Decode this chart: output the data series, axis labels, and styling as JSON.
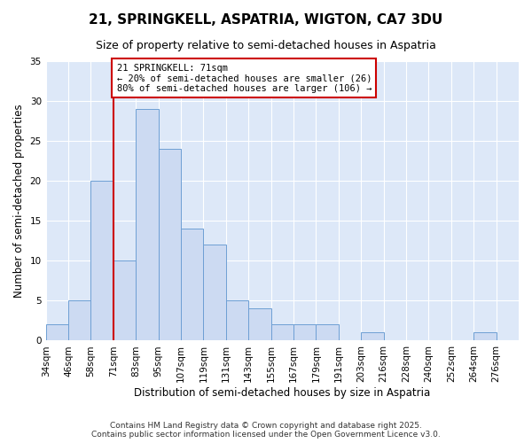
{
  "title": "21, SPRINGKELL, ASPATRIA, WIGTON, CA7 3DU",
  "subtitle": "Size of property relative to semi-detached houses in Aspatria",
  "xlabel": "Distribution of semi-detached houses by size in Aspatria",
  "ylabel": "Number of semi-detached properties",
  "bin_labels": [
    "34sqm",
    "46sqm",
    "58sqm",
    "71sqm",
    "83sqm",
    "95sqm",
    "107sqm",
    "119sqm",
    "131sqm",
    "143sqm",
    "155sqm",
    "167sqm",
    "179sqm",
    "191sqm",
    "203sqm",
    "216sqm",
    "228sqm",
    "240sqm",
    "252sqm",
    "264sqm",
    "276sqm"
  ],
  "counts": [
    2,
    5,
    20,
    10,
    29,
    24,
    14,
    12,
    5,
    4,
    2,
    2,
    2,
    0,
    1,
    0,
    0,
    0,
    0,
    1,
    0
  ],
  "marker_bin_index": 3,
  "bar_color": "#ccdaf2",
  "bar_edge_color": "#6e9fd4",
  "marker_line_color": "#cc0000",
  "annotation_text": "21 SPRINGKELL: 71sqm\n← 20% of semi-detached houses are smaller (26)\n80% of semi-detached houses are larger (106) →",
  "annotation_box_color": "#ffffff",
  "annotation_box_edge_color": "#cc0000",
  "ylim": [
    0,
    35
  ],
  "yticks": [
    0,
    5,
    10,
    15,
    20,
    25,
    30,
    35
  ],
  "background_color": "#dde8f8",
  "grid_color": "#ffffff",
  "footer_line1": "Contains HM Land Registry data © Crown copyright and database right 2025.",
  "footer_line2": "Contains public sector information licensed under the Open Government Licence v3.0.",
  "title_fontsize": 11,
  "subtitle_fontsize": 9,
  "axis_label_fontsize": 8.5,
  "tick_fontsize": 7.5,
  "annotation_fontsize": 7.5,
  "footer_fontsize": 6.5
}
